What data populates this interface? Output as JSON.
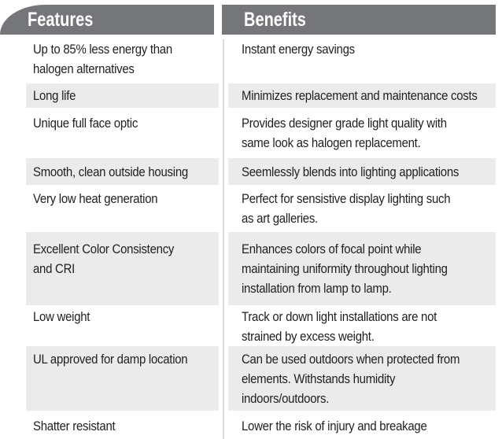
{
  "table": {
    "headers": {
      "features": "Features",
      "benefits": "Benefits"
    },
    "rows": [
      {
        "feature": "Up to 85% less energy than\nhalogen alternatives",
        "benefit": "Instant energy savings"
      },
      {
        "feature": "Long life",
        "benefit": "Minimizes replacement and maintenance costs"
      },
      {
        "feature": "Unique full face optic",
        "benefit": "Provides designer grade light quality with\nsame look as halogen replacement."
      },
      {
        "feature": "Smooth, clean outside housing",
        "benefit": "Seemlessly blends into lighting applications"
      },
      {
        "feature": "Very low heat generation",
        "benefit": "Perfect for sensistive display lighting such\nas art galleries."
      },
      {
        "feature": "Excellent Color Consistency\nand CRI",
        "benefit": "Enhances colors of focal point while\nmaintaining uniformity throughout lighting\ninstallation from lamp to lamp."
      },
      {
        "feature": "Low weight",
        "benefit": "Track or down light installations are not\nstrained by excess weight."
      },
      {
        "feature": "UL approved for damp location",
        "benefit": "Can be used outdoors when protected from\nelements. Withstands humidity\nindoors/outdoors."
      },
      {
        "feature": "Shatter resistant",
        "benefit": "Lower the risk of injury and breakage"
      }
    ]
  },
  "colors": {
    "header_bg": "#747679",
    "header_text": "#ffffff",
    "shaded_row_bg": "#ebebec",
    "divider": "#d9d9d9",
    "body_text": "#1f1f1f"
  }
}
